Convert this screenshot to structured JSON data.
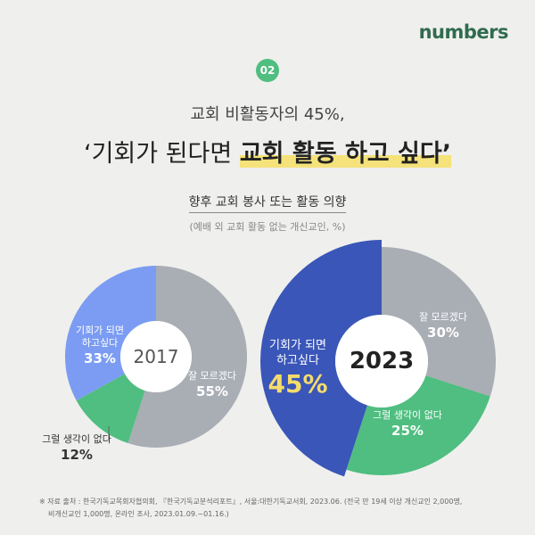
{
  "brand": "numbers",
  "header": {
    "badge": "02",
    "subtitle": "교회 비활동자의 45%,",
    "title": "‘기회가 된다면",
    "title_highlight": "교회 활동 하고 싶다’"
  },
  "chart_title": "향후 교회 봉사 또는 활동 의향",
  "chart_subtitle": "(예배 외 교회 활동 없는 개신교인, %)",
  "chart_data": [
    {
      "type": "pie",
      "center_label": "2017",
      "categories": [
        "잘 모르겠다",
        "그럴 생각이 없다",
        "기회가 되면\n하고싶다"
      ],
      "values": [
        55,
        12,
        33
      ],
      "value_labels": [
        "55%",
        "12%",
        "33%"
      ],
      "colors": [
        "#a9adb4",
        "#4fbe80",
        "#7b9cf2"
      ]
    },
    {
      "type": "pie",
      "center_label": "2023",
      "categories": [
        "잘 모르겠다",
        "그럴 생각이 없다",
        "기회가 되면\n하고싶다"
      ],
      "values": [
        30,
        25,
        45
      ],
      "value_labels": [
        "30%",
        "25%",
        "45%"
      ],
      "colors": [
        "#a9adb4",
        "#4fbe80",
        "#3a56b8"
      ]
    }
  ],
  "footnote": [
    "※ 자료 출처 : 한국기독교목회자협의회, 『한국기독교분석리포트』, 서울:대한기독교서회, 2023.06. (전국 만 19세 이상 개신교인 2,000명,",
    "비개신교인 1,000명, 온라인 조사, 2023.01.09.~01.16.)"
  ]
}
